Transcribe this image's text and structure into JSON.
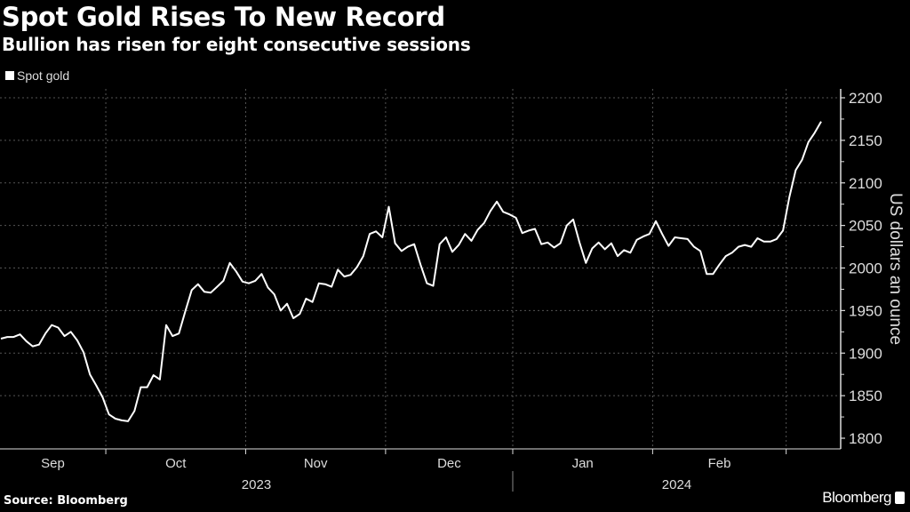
{
  "header": {
    "title": "Spot Gold Rises To New Record",
    "subtitle": "Bullion has risen for eight consecutive sessions"
  },
  "footer": {
    "source": "Source: Bloomberg",
    "brand": "Bloomberg"
  },
  "colors": {
    "background": "#000000",
    "line": "#ffffff",
    "grid": "#555555"
  },
  "chart_data": {
    "type": "line",
    "title": "Spot Gold Rises To New Record",
    "subtitle": "Bullion has risen for eight consecutive sessions",
    "xlabel": "",
    "ylabel": "US dollars an ounce",
    "ylim": [
      1800,
      2200
    ],
    "yticks": [
      1800,
      1850,
      1900,
      1950,
      2000,
      2050,
      2100,
      2150,
      2200
    ],
    "y_axis_side": "right",
    "x_month_labels": [
      "Sep",
      "Oct",
      "Nov",
      "Dec",
      "Jan",
      "Feb"
    ],
    "x_year_labels": [
      "2023",
      "2024"
    ],
    "grid": true,
    "legend_position": "top-left",
    "series": [
      {
        "name": "Spot gold",
        "x": [
          "2023-09-07",
          "2023-09-08",
          "2023-09-11",
          "2023-09-12",
          "2023-09-13",
          "2023-09-14",
          "2023-09-15",
          "2023-09-18",
          "2023-09-19",
          "2023-09-20",
          "2023-09-21",
          "2023-09-22",
          "2023-09-25",
          "2023-09-26",
          "2023-09-27",
          "2023-09-28",
          "2023-09-29",
          "2023-10-02",
          "2023-10-03",
          "2023-10-04",
          "2023-10-05",
          "2023-10-06",
          "2023-10-09",
          "2023-10-10",
          "2023-10-11",
          "2023-10-12",
          "2023-10-13",
          "2023-10-16",
          "2023-10-17",
          "2023-10-18",
          "2023-10-19",
          "2023-10-20",
          "2023-10-23",
          "2023-10-24",
          "2023-10-25",
          "2023-10-26",
          "2023-10-27",
          "2023-10-30",
          "2023-10-31",
          "2023-11-01",
          "2023-11-02",
          "2023-11-03",
          "2023-11-06",
          "2023-11-07",
          "2023-11-08",
          "2023-11-09",
          "2023-11-10",
          "2023-11-13",
          "2023-11-14",
          "2023-11-15",
          "2023-11-16",
          "2023-11-17",
          "2023-11-20",
          "2023-11-21",
          "2023-11-22",
          "2023-11-23",
          "2023-11-24",
          "2023-11-27",
          "2023-11-28",
          "2023-11-29",
          "2023-11-30",
          "2023-12-01",
          "2023-12-04",
          "2023-12-05",
          "2023-12-06",
          "2023-12-07",
          "2023-12-08",
          "2023-12-11",
          "2023-12-12",
          "2023-12-13",
          "2023-12-14",
          "2023-12-15",
          "2023-12-18",
          "2023-12-19",
          "2023-12-20",
          "2023-12-21",
          "2023-12-22",
          "2023-12-26",
          "2023-12-27",
          "2023-12-28",
          "2023-12-29",
          "2024-01-02",
          "2024-01-03",
          "2024-01-04",
          "2024-01-05",
          "2024-01-08",
          "2024-01-09",
          "2024-01-10",
          "2024-01-11",
          "2024-01-12",
          "2024-01-15",
          "2024-01-16",
          "2024-01-17",
          "2024-01-18",
          "2024-01-19",
          "2024-01-22",
          "2024-01-23",
          "2024-01-24",
          "2024-01-25",
          "2024-01-26",
          "2024-01-29",
          "2024-01-30",
          "2024-01-31",
          "2024-02-01",
          "2024-02-02",
          "2024-02-05",
          "2024-02-06",
          "2024-02-07",
          "2024-02-08",
          "2024-02-09",
          "2024-02-12",
          "2024-02-13",
          "2024-02-14",
          "2024-02-15",
          "2024-02-16",
          "2024-02-19",
          "2024-02-20",
          "2024-02-21",
          "2024-02-22",
          "2024-02-23",
          "2024-02-26",
          "2024-02-27",
          "2024-02-28",
          "2024-02-29",
          "2024-03-01",
          "2024-03-04",
          "2024-03-05",
          "2024-03-06",
          "2024-03-07",
          "2024-03-08"
        ],
        "values": [
          1917,
          1919,
          1919,
          1922,
          1914,
          1908,
          1910,
          1923,
          1933,
          1930,
          1920,
          1925,
          1915,
          1901,
          1875,
          1862,
          1848,
          1828,
          1823,
          1821,
          1820,
          1832,
          1860,
          1860,
          1874,
          1869,
          1933,
          1920,
          1923,
          1949,
          1974,
          1981,
          1972,
          1971,
          1978,
          1985,
          2006,
          1996,
          1984,
          1982,
          1985,
          1993,
          1977,
          1969,
          1950,
          1958,
          1941,
          1946,
          1964,
          1960,
          1982,
          1981,
          1978,
          1998,
          1990,
          1992,
          2001,
          2014,
          2040,
          2043,
          2036,
          2072,
          2029,
          2020,
          2025,
          2028,
          2004,
          1982,
          1979,
          2028,
          2036,
          2019,
          2027,
          2040,
          2032,
          2045,
          2053,
          2067,
          2078,
          2066,
          2063,
          2059,
          2041,
          2044,
          2046,
          2028,
          2030,
          2024,
          2029,
          2050,
          2057,
          2030,
          2006,
          2023,
          2030,
          2022,
          2029,
          2014,
          2021,
          2018,
          2033,
          2037,
          2040,
          2055,
          2040,
          2026,
          2036,
          2035,
          2034,
          2025,
          2020,
          1993,
          1993,
          2004,
          2014,
          2018,
          2025,
          2027,
          2025,
          2035,
          2031,
          2031,
          2034,
          2044,
          2083,
          2115,
          2127,
          2148,
          2159,
          2172
        ]
      }
    ]
  }
}
